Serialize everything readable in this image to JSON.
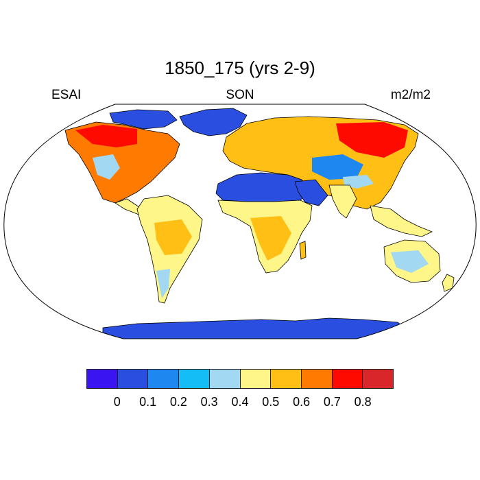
{
  "title": "1850_175 (yrs 2-9)",
  "left_label": "ESAI",
  "center_label": "SON",
  "right_label": "m2/m2",
  "colorbar": {
    "colors": [
      "#3b14f2",
      "#2a4fe0",
      "#1e87f0",
      "#14bdf5",
      "#a3d8f2",
      "#fff68a",
      "#ffbf14",
      "#ff7a00",
      "#ff0a00",
      "#d9262b"
    ],
    "ticks": [
      "0",
      "0.1",
      "0.2",
      "0.3",
      "0.4",
      "0.5",
      "0.6",
      "0.7",
      "0.8"
    ]
  },
  "legend_colors": {
    "ocean": "#ffffff",
    "no_data": "#2a4fe0",
    "coast": "#000000"
  }
}
